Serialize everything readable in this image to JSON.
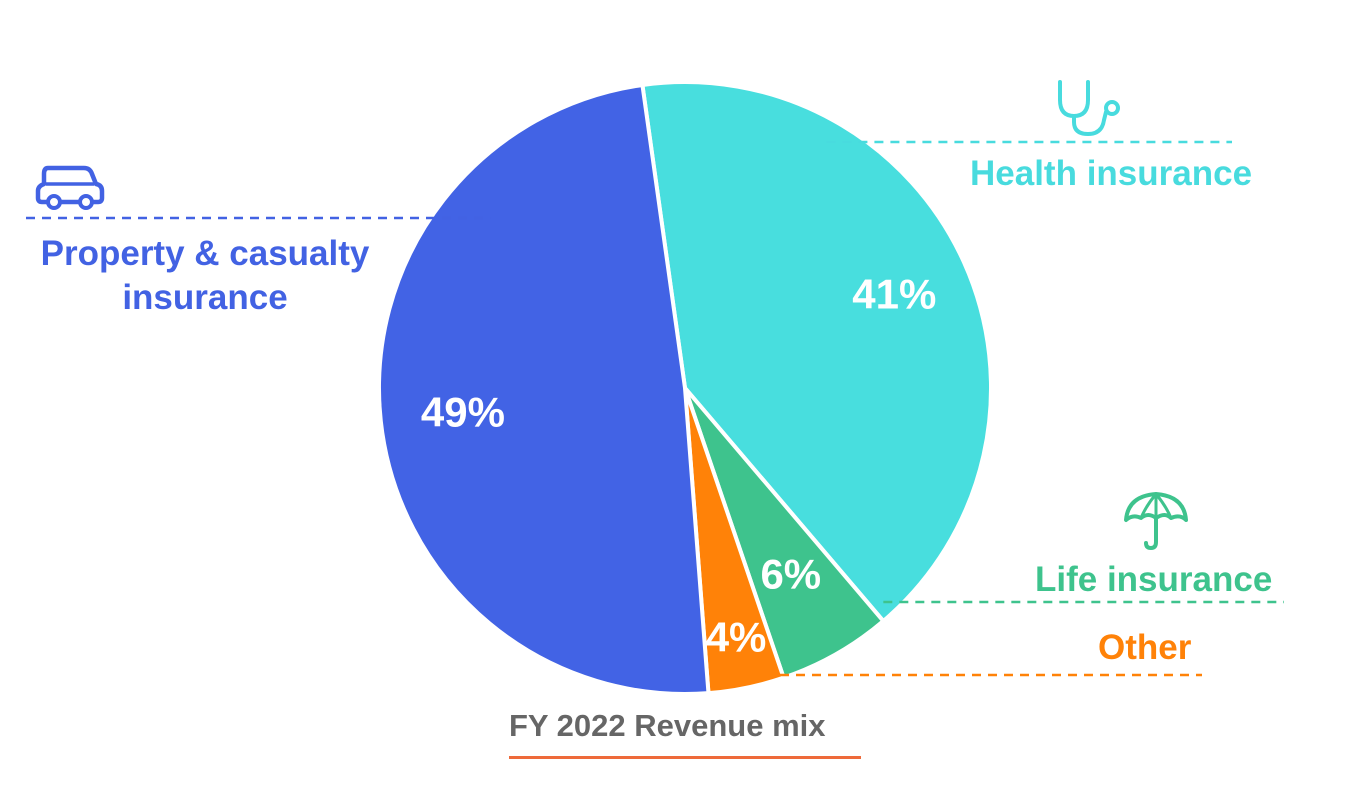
{
  "chart_data": {
    "type": "pie",
    "title": "FY 2022 Revenue mix",
    "slices": [
      {
        "label": "Health insurance",
        "value": 41,
        "value_label": "41%",
        "color": "#48dede",
        "label_color": "#48dbde",
        "icon": "stethoscope-icon"
      },
      {
        "label": "Life insurance",
        "value": 6,
        "value_label": "6%",
        "color": "#3ec38d",
        "label_color": "#3ec38d",
        "icon": "umbrella-icon"
      },
      {
        "label": "Other",
        "value": 4,
        "value_label": "4%",
        "color": "#ff8208",
        "label_color": "#ff8208",
        "icon": ""
      },
      {
        "label": "Property & casualty insurance",
        "value": 49,
        "value_label": "49%",
        "color": "#4263e5",
        "label_color": "#4262e3",
        "icon": "car-icon"
      }
    ],
    "start": "12 o'clock, clockwise",
    "legend": "none (direct labels with leader lines)"
  },
  "labels": {
    "property_line1": "Property & casualty",
    "property_line2": "insurance",
    "health": "Health insurance",
    "life": "Life insurance",
    "other": "Other"
  },
  "title": "FY 2022 Revenue mix",
  "colors": {
    "title_text": "#666666",
    "title_underline": "#ee6a3a"
  }
}
